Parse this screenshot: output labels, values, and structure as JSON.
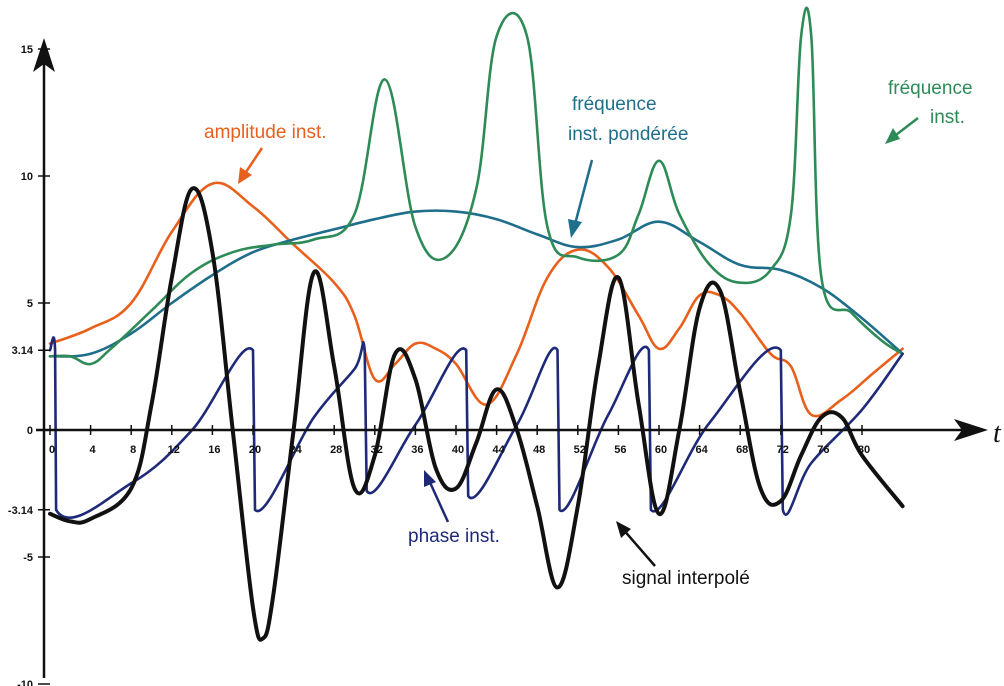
{
  "chart_data": {
    "type": "line",
    "title": "",
    "xlabel": "t",
    "ylabel": "",
    "xlim": [
      0,
      86
    ],
    "ylim": [
      -10,
      15
    ],
    "grid": false,
    "x_ticks": [
      "0",
      "4",
      "8",
      "12",
      "16",
      "20",
      "24",
      "28",
      "32",
      "36",
      "40",
      "44",
      "48",
      "52",
      "56",
      "60",
      "64",
      "68",
      "72",
      "76",
      "80"
    ],
    "y_ticks": [
      {
        "value": 15,
        "label": "15"
      },
      {
        "value": 10,
        "label": "10"
      },
      {
        "value": 5,
        "label": "5"
      },
      {
        "value": 3.14,
        "label": "3.14"
      },
      {
        "value": 0,
        "label": "0"
      },
      {
        "value": -3.14,
        "label": "-3.14"
      },
      {
        "value": -5,
        "label": "-5"
      },
      {
        "value": -10,
        "label": "-10"
      }
    ],
    "series": [
      {
        "name": "amplitude inst.",
        "color": "#e8601c",
        "points": [
          [
            0,
            3.4
          ],
          [
            4,
            4.0
          ],
          [
            8,
            5.0
          ],
          [
            12,
            7.8
          ],
          [
            16,
            9.7
          ],
          [
            20,
            8.8
          ],
          [
            24,
            7.3
          ],
          [
            28,
            5.8
          ],
          [
            30,
            4.5
          ],
          [
            32,
            2.0
          ],
          [
            34,
            2.6
          ],
          [
            36,
            3.4
          ],
          [
            38,
            3.2
          ],
          [
            40,
            2.6
          ],
          [
            43,
            1.0
          ],
          [
            46,
            3.0
          ],
          [
            49,
            6.0
          ],
          [
            52,
            7.1
          ],
          [
            55,
            6.4
          ],
          [
            58,
            4.5
          ],
          [
            60,
            3.2
          ],
          [
            62,
            4.0
          ],
          [
            64,
            5.3
          ],
          [
            66,
            5.3
          ],
          [
            68,
            4.6
          ],
          [
            71,
            3.0
          ],
          [
            73,
            2.5
          ],
          [
            75,
            0.6
          ],
          [
            78,
            1.2
          ],
          [
            81,
            2.2
          ],
          [
            84,
            3.2
          ]
        ]
      },
      {
        "name": "fréquence inst. pondérée",
        "color": "#1f6e8c",
        "points": [
          [
            0,
            2.9
          ],
          [
            4,
            3.0
          ],
          [
            8,
            3.8
          ],
          [
            12,
            5.0
          ],
          [
            16,
            6.1
          ],
          [
            20,
            7.0
          ],
          [
            24,
            7.5
          ],
          [
            28,
            7.9
          ],
          [
            32,
            8.3
          ],
          [
            36,
            8.6
          ],
          [
            40,
            8.6
          ],
          [
            44,
            8.3
          ],
          [
            48,
            7.7
          ],
          [
            52,
            7.2
          ],
          [
            56,
            7.5
          ],
          [
            60,
            8.2
          ],
          [
            64,
            7.4
          ],
          [
            68,
            6.5
          ],
          [
            72,
            6.3
          ],
          [
            76,
            5.6
          ],
          [
            80,
            4.4
          ],
          [
            84,
            3.0
          ]
        ]
      },
      {
        "name": "fréquence inst.",
        "color": "#2e8b57",
        "points": [
          [
            0,
            2.9
          ],
          [
            2,
            2.9
          ],
          [
            4,
            2.6
          ],
          [
            6,
            3.2
          ],
          [
            10,
            4.7
          ],
          [
            14,
            6.2
          ],
          [
            18,
            7.0
          ],
          [
            22,
            7.3
          ],
          [
            26,
            7.5
          ],
          [
            30,
            8.5
          ],
          [
            33,
            13.8
          ],
          [
            36,
            8.0
          ],
          [
            39,
            6.8
          ],
          [
            42,
            9.5
          ],
          [
            44,
            15.5
          ],
          [
            47,
            15.5
          ],
          [
            49,
            8.0
          ],
          [
            52,
            6.8
          ],
          [
            56,
            6.9
          ],
          [
            58,
            8.5
          ],
          [
            60,
            10.6
          ],
          [
            62,
            8.5
          ],
          [
            65,
            6.5
          ],
          [
            68,
            5.8
          ],
          [
            71,
            6.3
          ],
          [
            73,
            8.5
          ],
          [
            74,
            15.5
          ],
          [
            75,
            15.5
          ],
          [
            76,
            6.0
          ],
          [
            79,
            4.6
          ],
          [
            82,
            3.5
          ],
          [
            84,
            3.0
          ]
        ]
      },
      {
        "name": "phase inst.",
        "color": "#1e2a78",
        "points": [
          [
            0,
            3.14
          ],
          [
            0.5,
            3.14
          ],
          [
            0.6,
            -3.14
          ],
          [
            8,
            -2.1
          ],
          [
            14,
            0.0
          ],
          [
            20,
            3.14
          ],
          [
            20.2,
            -3.14
          ],
          [
            26,
            0.5
          ],
          [
            30,
            2.4
          ],
          [
            31,
            3.14
          ],
          [
            31.2,
            -2.4
          ],
          [
            36,
            0.2
          ],
          [
            41,
            3.14
          ],
          [
            41.2,
            -2.6
          ],
          [
            46,
            0.2
          ],
          [
            50,
            3.14
          ],
          [
            50.2,
            -3.14
          ],
          [
            55,
            0.6
          ],
          [
            59,
            3.14
          ],
          [
            59.2,
            -3.14
          ],
          [
            65,
            0.3
          ],
          [
            72,
            3.14
          ],
          [
            72.2,
            -3.14
          ],
          [
            75,
            -1.3
          ],
          [
            80,
            0.8
          ],
          [
            84,
            3.0
          ]
        ]
      },
      {
        "name": "signal interpolé",
        "color": "#111111",
        "points": [
          [
            0,
            -3.3
          ],
          [
            2,
            -3.6
          ],
          [
            4,
            -3.5
          ],
          [
            8,
            -2.3
          ],
          [
            10,
            1.0
          ],
          [
            12,
            6.0
          ],
          [
            14,
            9.5
          ],
          [
            16,
            7.0
          ],
          [
            18,
            0.0
          ],
          [
            20,
            -7.0
          ],
          [
            21,
            -8.2
          ],
          [
            22,
            -6.5
          ],
          [
            24,
            0.0
          ],
          [
            26,
            6.2
          ],
          [
            28,
            2.5
          ],
          [
            30,
            -2.3
          ],
          [
            32,
            -1.0
          ],
          [
            34,
            3.0
          ],
          [
            36,
            2.0
          ],
          [
            38,
            -1.5
          ],
          [
            40,
            -2.3
          ],
          [
            42,
            -0.5
          ],
          [
            44,
            1.6
          ],
          [
            46,
            0.0
          ],
          [
            48,
            -3.0
          ],
          [
            50,
            -6.2
          ],
          [
            52,
            -3.0
          ],
          [
            54,
            2.5
          ],
          [
            56,
            6.0
          ],
          [
            58,
            1.0
          ],
          [
            60,
            -3.3
          ],
          [
            62,
            0.0
          ],
          [
            64,
            4.8
          ],
          [
            66,
            5.5
          ],
          [
            68,
            1.5
          ],
          [
            70,
            -2.3
          ],
          [
            72,
            -2.8
          ],
          [
            74,
            -1.0
          ],
          [
            76,
            0.5
          ],
          [
            78,
            0.5
          ],
          [
            80,
            -1.0
          ],
          [
            84,
            -3.0
          ]
        ]
      }
    ],
    "annotations": [
      {
        "text": "amplitude inst.",
        "color": "#e8601c"
      },
      {
        "text": "fréquence",
        "color": "#1f6e8c"
      },
      {
        "text": "inst. pondérée",
        "color": "#1f6e8c"
      },
      {
        "text": "fréquence",
        "color": "#2e8b57"
      },
      {
        "text": "inst.",
        "color": "#2e8b57"
      },
      {
        "text": "phase inst.",
        "color": "#1e2a78"
      },
      {
        "text": "signal interpolé",
        "color": "#111111"
      }
    ]
  }
}
